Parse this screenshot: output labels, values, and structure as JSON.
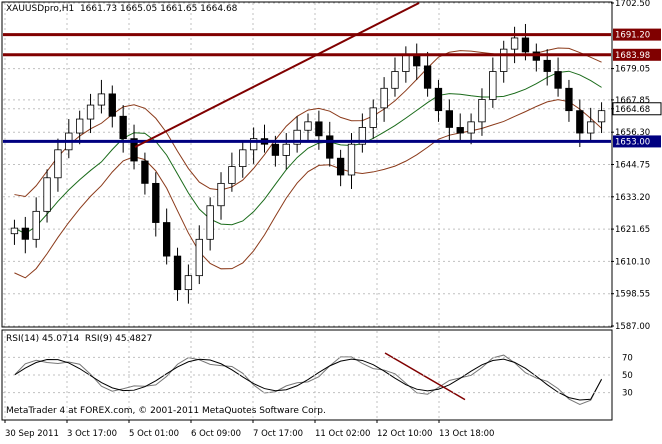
{
  "header": {
    "symbol_line": "XAUUSDpro,H1  1661.73 1665.05 1661.65 1664.68"
  },
  "footer": {
    "copyright": "MetaTrader 4 at FOREX.com, © 2001-2011 MetaQuotes Software Corp."
  },
  "colors": {
    "background": "#ffffff",
    "grid": "#c0c0c0",
    "candle": "#000000",
    "resistance_line": "#800000",
    "support_line": "#000080",
    "bollinger": "#8b3a1a",
    "moving_average": "#1a6b1a",
    "trendline": "#800000",
    "rsi14": "#000000",
    "rsi9": "#777777"
  },
  "chart_data": [
    {
      "type": "candlestick",
      "title": "XAUUSDpro,H1",
      "price_axis_ticks": [
        "1702.50",
        "1691.20",
        "1683.98",
        "1679.05",
        "1667.85",
        "1664.68",
        "1656.30",
        "1653.00",
        "1644.75",
        "1633.20",
        "1621.65",
        "1610.10",
        "1598.55",
        "1587.00"
      ],
      "time_axis_ticks": [
        "30 Sep 2011",
        "3 Oct 17:00",
        "5 Oct 01:00",
        "6 Oct 09:00",
        "7 Oct 17:00",
        "11 Oct 02:00",
        "12 Oct 10:00",
        "13 Oct 18:00"
      ],
      "ylim": [
        1587.0,
        1702.5
      ],
      "last_price": 1664.68,
      "horizontal_levels": [
        {
          "label": "1691.20",
          "value": 1691.2,
          "role": "resistance"
        },
        {
          "label": "1683.98",
          "value": 1683.98,
          "role": "resistance"
        },
        {
          "label": "1653.00",
          "value": 1653.0,
          "role": "support"
        }
      ],
      "ohlc_last": {
        "open": 1661.73,
        "high": 1665.05,
        "low": 1661.65,
        "close": 1664.68
      },
      "closes": [
        1622,
        1618,
        1628,
        1640,
        1650,
        1656,
        1661,
        1666,
        1670,
        1662,
        1654,
        1646,
        1638,
        1624,
        1612,
        1600,
        1605,
        1618,
        1630,
        1638,
        1644,
        1650,
        1654,
        1652,
        1648,
        1652,
        1657,
        1660,
        1655,
        1647,
        1641,
        1652,
        1658,
        1665,
        1672,
        1678,
        1684,
        1680,
        1672,
        1664,
        1658,
        1656,
        1660,
        1668,
        1678,
        1686,
        1690,
        1685,
        1682,
        1678,
        1672,
        1664,
        1656,
        1660,
        1664
      ],
      "grid": true
    },
    {
      "type": "line",
      "title": "RSI(14) 45.0714  RSI(9) 45.4827",
      "indicator_labels": {
        "rsi14": "RSI(14) 45.0714",
        "rsi9": "RSI(9) 45.4827"
      },
      "ylim": [
        0,
        100
      ],
      "y_ticks": [
        "70",
        "50",
        "30"
      ],
      "rsi14_last": 45.0714,
      "rsi9_last": 45.4827,
      "grid": true
    }
  ]
}
